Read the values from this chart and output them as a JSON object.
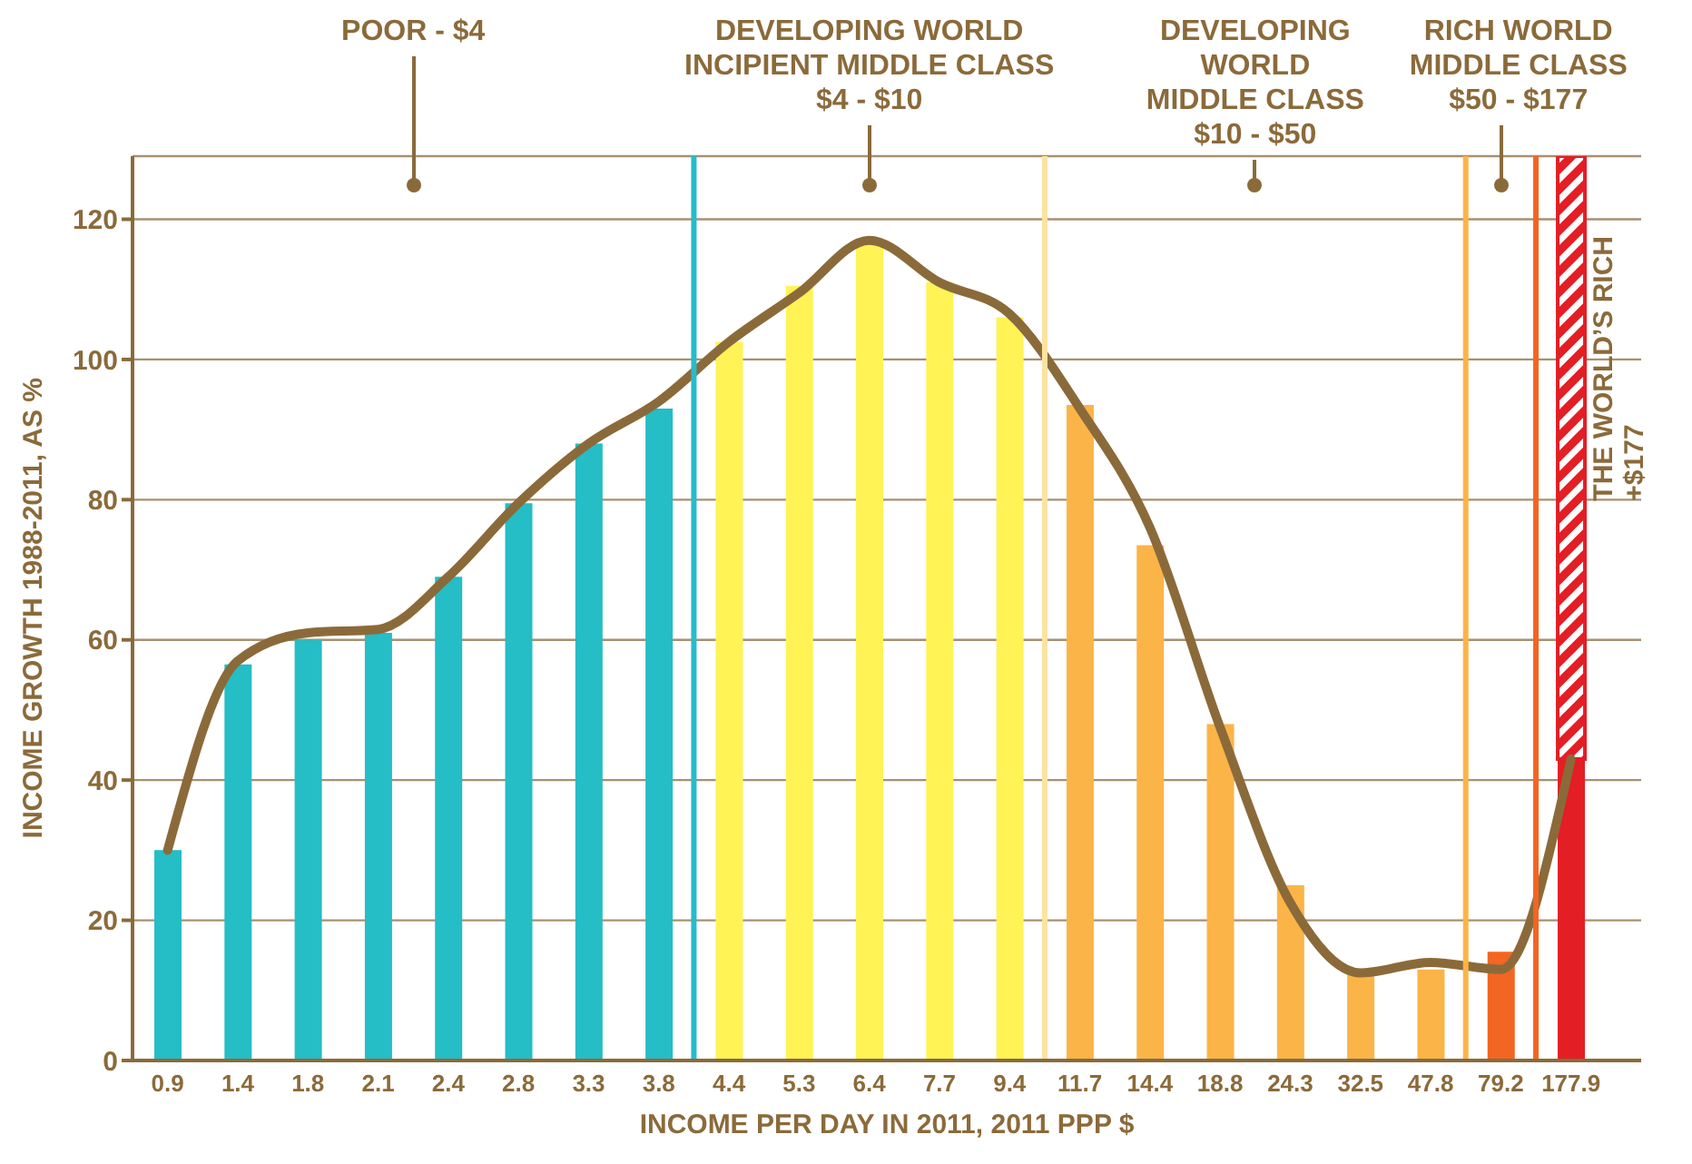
{
  "chart_data": {
    "type": "bar",
    "xlabel": "INCOME PER DAY IN 2011, 2011 PPP $",
    "ylabel": "INCOME GROWTH 1988-2011, AS %",
    "categories": [
      "0.9",
      "1.4",
      "1.8",
      "2.1",
      "2.4",
      "2.8",
      "3.3",
      "3.8",
      "4.4",
      "5.3",
      "6.4",
      "7.7",
      "9.4",
      "11.7",
      "14.4",
      "18.8",
      "24.3",
      "32.5",
      "47.8",
      "79.2",
      "177.9"
    ],
    "stacked": true,
    "ylim": [
      0,
      129
    ],
    "yticks": [
      0,
      20,
      40,
      60,
      80,
      100,
      120
    ],
    "grid": "y",
    "marker": "none",
    "series": [
      {
        "colors": [
          "#25bdc6",
          "#25bdc6",
          "#25bdc6",
          "#25bdc6",
          "#25bdc6",
          "#25bdc6",
          "#25bdc6",
          "#25bdc6",
          "#fff355",
          "#fff355",
          "#fff355",
          "#fff355",
          "#fff355",
          "#fbb447",
          "#fbb447",
          "#fbb447",
          "#fbb447",
          "#fbb447",
          "#fbb447",
          "#f26522",
          "#e31e25"
        ],
        "values": [
          30,
          56.5,
          60,
          61,
          69,
          79.5,
          88,
          93,
          102.5,
          110.5,
          116.5,
          111,
          106,
          93.5,
          73.5,
          48,
          25,
          13,
          13,
          15.5,
          43
        ]
      },
      {
        "color": "#e31e25",
        "values": [
          null,
          null,
          null,
          null,
          null,
          null,
          null,
          null,
          null,
          null,
          null,
          null,
          null,
          null,
          null,
          null,
          null,
          null,
          null,
          null,
          86
        ]
      },
      {
        "type": "line",
        "color": "#8b6a3a",
        "values": [
          30,
          57,
          61,
          61.5,
          69,
          79.5,
          88,
          94,
          102.5,
          109.5,
          117,
          111,
          106.5,
          93,
          76,
          47.5,
          22.5,
          12.5,
          14,
          13,
          43
        ]
      }
    ],
    "ref_lines": [
      {
        "axis": "x",
        "value": "4.4",
        "color": "#27bcc8"
      },
      {
        "axis": "x",
        "value": "11.7",
        "color": "#fde3a0"
      },
      {
        "axis": "x",
        "value": "79.2",
        "color": "#fbb447"
      },
      {
        "axis": "x",
        "value": "177.9",
        "color": "#f26522"
      }
    ],
    "annotations": [
      "POOR - $4",
      "DEVELOPING WORLD\nINCIPIENT MIDDLE CLASS\n$4 - $10",
      "DEVELOPING\nWORLD\nMIDDLE CLASS\n$10 - $50",
      "RICH WORLD\nMIDDLE CLASS\n$50 - $177",
      "THE WORLD’S RICH\n+$177"
    ]
  }
}
